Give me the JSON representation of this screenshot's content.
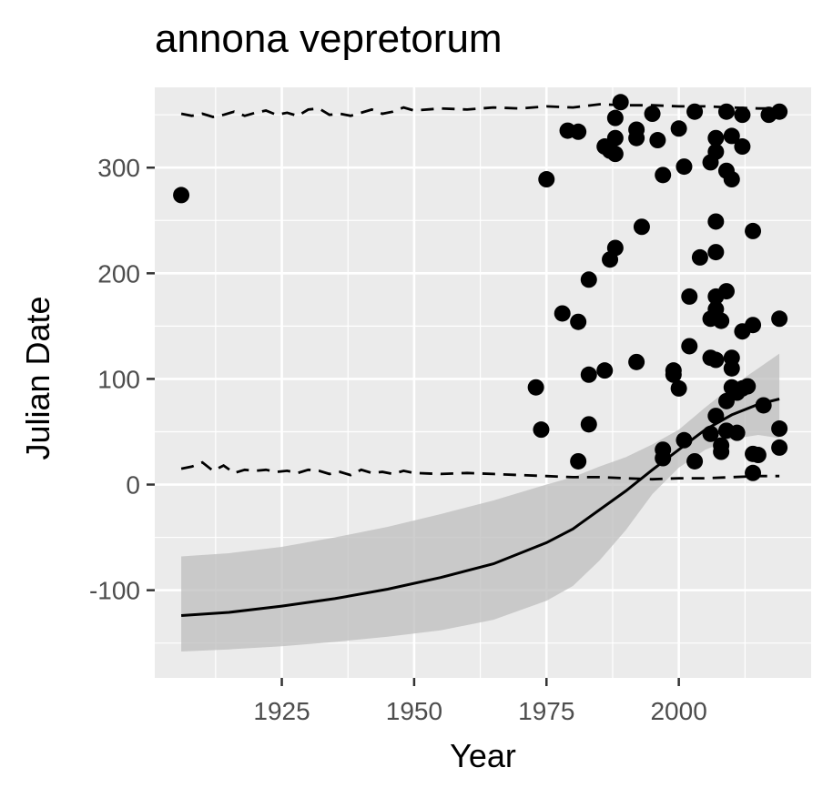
{
  "chart_data": {
    "type": "scatter",
    "title": "annona vepretorum",
    "xlabel": "Year",
    "ylabel": "Julian Date",
    "xlim": [
      1901,
      2025
    ],
    "ylim": [
      -183,
      376
    ],
    "x_ticks": [
      1925,
      1950,
      1975,
      2000
    ],
    "y_ticks": [
      -100,
      0,
      100,
      200,
      300
    ],
    "x_tick_labels": [
      "1925",
      "1950",
      "1975",
      "2000"
    ],
    "y_tick_labels": [
      "-100",
      "0",
      "100",
      "200",
      "300"
    ],
    "grid": true,
    "legend": "none",
    "colors": {
      "panel": "#ebebeb",
      "grid": "#ffffff",
      "points": "#000000",
      "ribbon": "#bdbdbd",
      "line": "#000000"
    },
    "points": [
      [
        1906,
        274
      ],
      [
        1973,
        92
      ],
      [
        1974,
        52
      ],
      [
        1975,
        289
      ],
      [
        1978,
        162
      ],
      [
        1979,
        335
      ],
      [
        1981,
        334
      ],
      [
        1981,
        154
      ],
      [
        1981,
        22
      ],
      [
        1983,
        194
      ],
      [
        1983,
        104
      ],
      [
        1983,
        57
      ],
      [
        1986,
        320
      ],
      [
        1986,
        108
      ],
      [
        1987,
        316
      ],
      [
        1987,
        213
      ],
      [
        1988,
        347
      ],
      [
        1988,
        328
      ],
      [
        1988,
        224
      ],
      [
        1988,
        313
      ],
      [
        1989,
        362
      ],
      [
        1992,
        336
      ],
      [
        1992,
        328
      ],
      [
        1992,
        116
      ],
      [
        1993,
        244
      ],
      [
        1995,
        351
      ],
      [
        1996,
        326
      ],
      [
        1997,
        293
      ],
      [
        1997,
        33
      ],
      [
        1997,
        25
      ],
      [
        1999,
        108
      ],
      [
        1999,
        104
      ],
      [
        2000,
        337
      ],
      [
        2000,
        91
      ],
      [
        2001,
        301
      ],
      [
        2001,
        42
      ],
      [
        2002,
        178
      ],
      [
        2002,
        131
      ],
      [
        2003,
        353
      ],
      [
        2003,
        22
      ],
      [
        2004,
        215
      ],
      [
        2006,
        305
      ],
      [
        2006,
        157
      ],
      [
        2006,
        120
      ],
      [
        2006,
        48
      ],
      [
        2007,
        315
      ],
      [
        2007,
        328
      ],
      [
        2007,
        249
      ],
      [
        2007,
        220
      ],
      [
        2007,
        178
      ],
      [
        2007,
        166
      ],
      [
        2007,
        118
      ],
      [
        2007,
        65
      ],
      [
        2008,
        155
      ],
      [
        2008,
        37
      ],
      [
        2008,
        31
      ],
      [
        2009,
        353
      ],
      [
        2009,
        297
      ],
      [
        2009,
        183
      ],
      [
        2009,
        79
      ],
      [
        2009,
        51
      ],
      [
        2010,
        330
      ],
      [
        2010,
        289
      ],
      [
        2010,
        120
      ],
      [
        2010,
        110
      ],
      [
        2010,
        92
      ],
      [
        2011,
        87
      ],
      [
        2011,
        49
      ],
      [
        2012,
        350
      ],
      [
        2012,
        320
      ],
      [
        2012,
        145
      ],
      [
        2012,
        91
      ],
      [
        2013,
        93
      ],
      [
        2014,
        240
      ],
      [
        2014,
        151
      ],
      [
        2014,
        29
      ],
      [
        2014,
        11
      ],
      [
        2015,
        28
      ],
      [
        2016,
        75
      ],
      [
        2017,
        350
      ],
      [
        2019,
        353
      ],
      [
        2019,
        157
      ],
      [
        2019,
        53
      ],
      [
        2019,
        35
      ]
    ],
    "series": [
      {
        "type": "line",
        "x": [
          1906,
          1915,
          1925,
          1935,
          1945,
          1955,
          1965,
          1975,
          1980,
          1985,
          1990,
          1995,
          2000,
          2005,
          2010,
          2015,
          2019
        ],
        "y": [
          -124,
          -121,
          -115,
          -108,
          -99,
          -88,
          -75,
          -55,
          -42,
          -24,
          -6,
          14,
          33,
          52,
          66,
          76,
          81
        ]
      },
      {
        "type": "ribbon",
        "x": [
          1906,
          1915,
          1925,
          1935,
          1945,
          1955,
          1965,
          1975,
          1980,
          1985,
          1990,
          1995,
          2000,
          2005,
          2010,
          2015,
          2019
        ],
        "ymin": [
          -158,
          -156,
          -153,
          -149,
          -144,
          -138,
          -128,
          -110,
          -96,
          -72,
          -43,
          -9,
          16,
          33,
          43,
          47,
          44
        ],
        "ymax": [
          -68,
          -65,
          -59,
          -50,
          -40,
          -28,
          -15,
          0,
          7,
          17,
          26,
          38,
          52,
          73,
          93,
          110,
          124
        ]
      },
      {
        "type": "dashed-upper",
        "x": [
          1906,
          1908,
          1910,
          1912,
          1914,
          1916,
          1918,
          1920,
          1922,
          1924,
          1926,
          1928,
          1930,
          1932,
          1934,
          1936,
          1938,
          1940,
          1942,
          1944,
          1946,
          1948,
          1950,
          1955,
          1960,
          1965,
          1970,
          1975,
          1980,
          1985,
          1990,
          1995,
          2000,
          2005,
          2010,
          2015,
          2019
        ],
        "y": [
          351,
          349,
          351,
          348,
          350,
          353,
          349,
          352,
          354,
          350,
          352,
          349,
          355,
          356,
          350,
          351,
          349,
          352,
          355,
          351,
          353,
          357,
          354,
          356,
          355,
          357,
          356,
          358,
          357,
          360,
          359,
          359,
          358,
          358,
          357,
          356,
          356
        ]
      },
      {
        "type": "dashed-lower",
        "x": [
          1906,
          1908,
          1910,
          1912,
          1914,
          1916,
          1918,
          1920,
          1922,
          1924,
          1926,
          1928,
          1930,
          1932,
          1934,
          1936,
          1938,
          1940,
          1942,
          1944,
          1946,
          1948,
          1950,
          1955,
          1960,
          1965,
          1970,
          1975,
          1980,
          1985,
          1990,
          1995,
          2000,
          2005,
          2010,
          2015,
          2019
        ],
        "y": [
          15,
          17,
          21,
          13,
          18,
          11,
          14,
          13,
          14,
          12,
          13,
          11,
          14,
          13,
          10,
          12,
          9,
          14,
          11,
          12,
          10,
          13,
          11,
          10,
          11,
          10,
          9,
          8,
          7,
          7,
          6,
          5,
          6,
          6,
          7,
          8,
          8
        ]
      }
    ]
  }
}
